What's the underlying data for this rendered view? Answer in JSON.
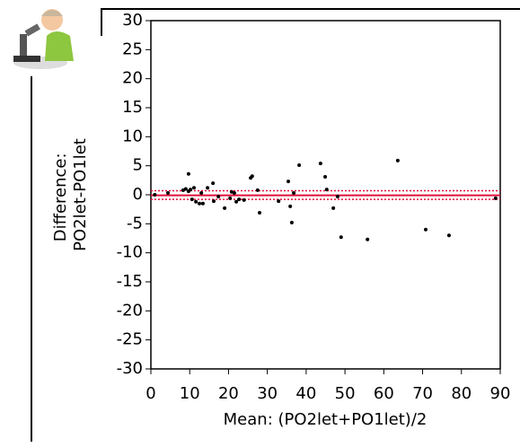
{
  "chart_data": {
    "type": "scatter",
    "xlabel": "Mean: (PO2let+PO1let)/2",
    "ylabel": [
      "Difference:",
      "PO2let-PO1let"
    ],
    "x": [
      1,
      4.4,
      8.3,
      9,
      9.7,
      9.7,
      10.2,
      10.6,
      11.1,
      11.6,
      12.5,
      13,
      13.4,
      14.6,
      16,
      16.2,
      17.4,
      19,
      20.4,
      20.8,
      21.5,
      22,
      22.7,
      24,
      25.7,
      26.1,
      27.5,
      28,
      32.9,
      35.4,
      35.9,
      36.3,
      36.8,
      38.2,
      43.7,
      44.9,
      45.3,
      47,
      48.1,
      49,
      55.8,
      63.6,
      70.8,
      76.8,
      88.8
    ],
    "y": [
      0,
      0.3,
      0.8,
      1,
      3.6,
      0.6,
      0.9,
      -0.8,
      1.2,
      -1.2,
      -1.5,
      0.3,
      -1.5,
      1.2,
      2,
      -1.1,
      -0.3,
      -2.3,
      -0.6,
      0.5,
      0.3,
      -1.2,
      -0.8,
      -0.9,
      2.9,
      3.2,
      0.8,
      -3.1,
      -1.1,
      2.3,
      -2,
      -4.8,
      0.3,
      5.1,
      5.4,
      3.1,
      0.9,
      -2.3,
      -0.3,
      -7.3,
      -7.7,
      5.9,
      -6,
      -7,
      -0.6
    ],
    "color": "#000000",
    "mean_line": -0.1,
    "limit_lines": [
      0.7,
      -0.8
    ],
    "line_color": "#e0103a",
    "xlim": [
      0,
      90
    ],
    "xticks": [
      0,
      10,
      20,
      30,
      40,
      50,
      60,
      70,
      80,
      90
    ],
    "ylim": [
      -30,
      30
    ],
    "yticks": [
      -30,
      -25,
      -20,
      -15,
      -10,
      -5,
      0,
      5,
      10,
      15,
      20,
      25,
      30
    ]
  }
}
